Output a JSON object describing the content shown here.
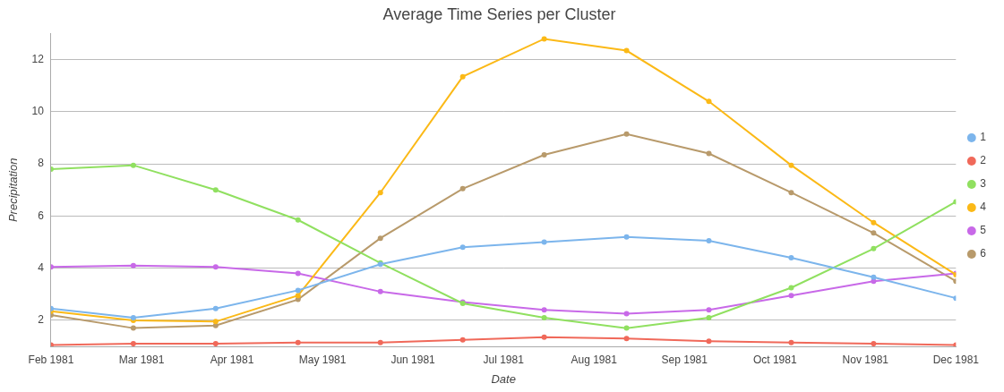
{
  "chart_data": {
    "type": "line",
    "title": "Average Time Series per Cluster",
    "x_label": "Date",
    "y_label": "Precipitation",
    "x": [
      2,
      2.91,
      3.82,
      4.73,
      5.64,
      6.55,
      7.45,
      8.36,
      9.27,
      10.18,
      11.09,
      12
    ],
    "xlim": [
      2,
      12
    ],
    "xticks": [
      {
        "value": 2,
        "label": "Feb 1981"
      },
      {
        "value": 3,
        "label": "Mar 1981"
      },
      {
        "value": 4,
        "label": "Apr 1981"
      },
      {
        "value": 5,
        "label": "May 1981"
      },
      {
        "value": 6,
        "label": "Jun 1981"
      },
      {
        "value": 7,
        "label": "Jul 1981"
      },
      {
        "value": 8,
        "label": "Aug 1981"
      },
      {
        "value": 9,
        "label": "Sep 1981"
      },
      {
        "value": 10,
        "label": "Oct 1981"
      },
      {
        "value": 11,
        "label": "Nov 1981"
      },
      {
        "value": 12,
        "label": "Dec 1981"
      }
    ],
    "ylim": [
      1,
      13
    ],
    "yticks": [
      2,
      4,
      6,
      8,
      10,
      12
    ],
    "grid": true,
    "legend": "right",
    "marker": "circle",
    "line_style": "solid",
    "series": [
      {
        "name": "1",
        "color": "#7cb5ec",
        "values": [
          2.45,
          2.1,
          2.45,
          3.15,
          4.15,
          4.8,
          5.0,
          5.2,
          5.05,
          4.4,
          3.65,
          2.85
        ]
      },
      {
        "name": "2",
        "color": "#f0695a",
        "values": [
          1.05,
          1.1,
          1.1,
          1.15,
          1.15,
          1.25,
          1.35,
          1.3,
          1.2,
          1.15,
          1.1,
          1.05
        ]
      },
      {
        "name": "3",
        "color": "#90e060",
        "values": [
          7.8,
          7.95,
          7.0,
          5.85,
          4.2,
          2.65,
          2.1,
          1.7,
          2.1,
          3.25,
          4.75,
          6.55
        ]
      },
      {
        "name": "4",
        "color": "#fbb917",
        "values": [
          2.35,
          2.0,
          1.95,
          2.95,
          6.9,
          11.35,
          12.8,
          12.35,
          10.4,
          7.95,
          5.75,
          3.75
        ]
      },
      {
        "name": "5",
        "color": "#c869e8",
        "values": [
          4.05,
          4.1,
          4.05,
          3.8,
          3.1,
          2.7,
          2.4,
          2.25,
          2.4,
          2.95,
          3.5,
          3.8
        ]
      },
      {
        "name": "6",
        "color": "#b89a6b",
        "values": [
          2.2,
          1.7,
          1.8,
          2.8,
          5.15,
          7.05,
          8.35,
          9.15,
          8.4,
          6.9,
          5.35,
          3.5
        ]
      }
    ]
  }
}
